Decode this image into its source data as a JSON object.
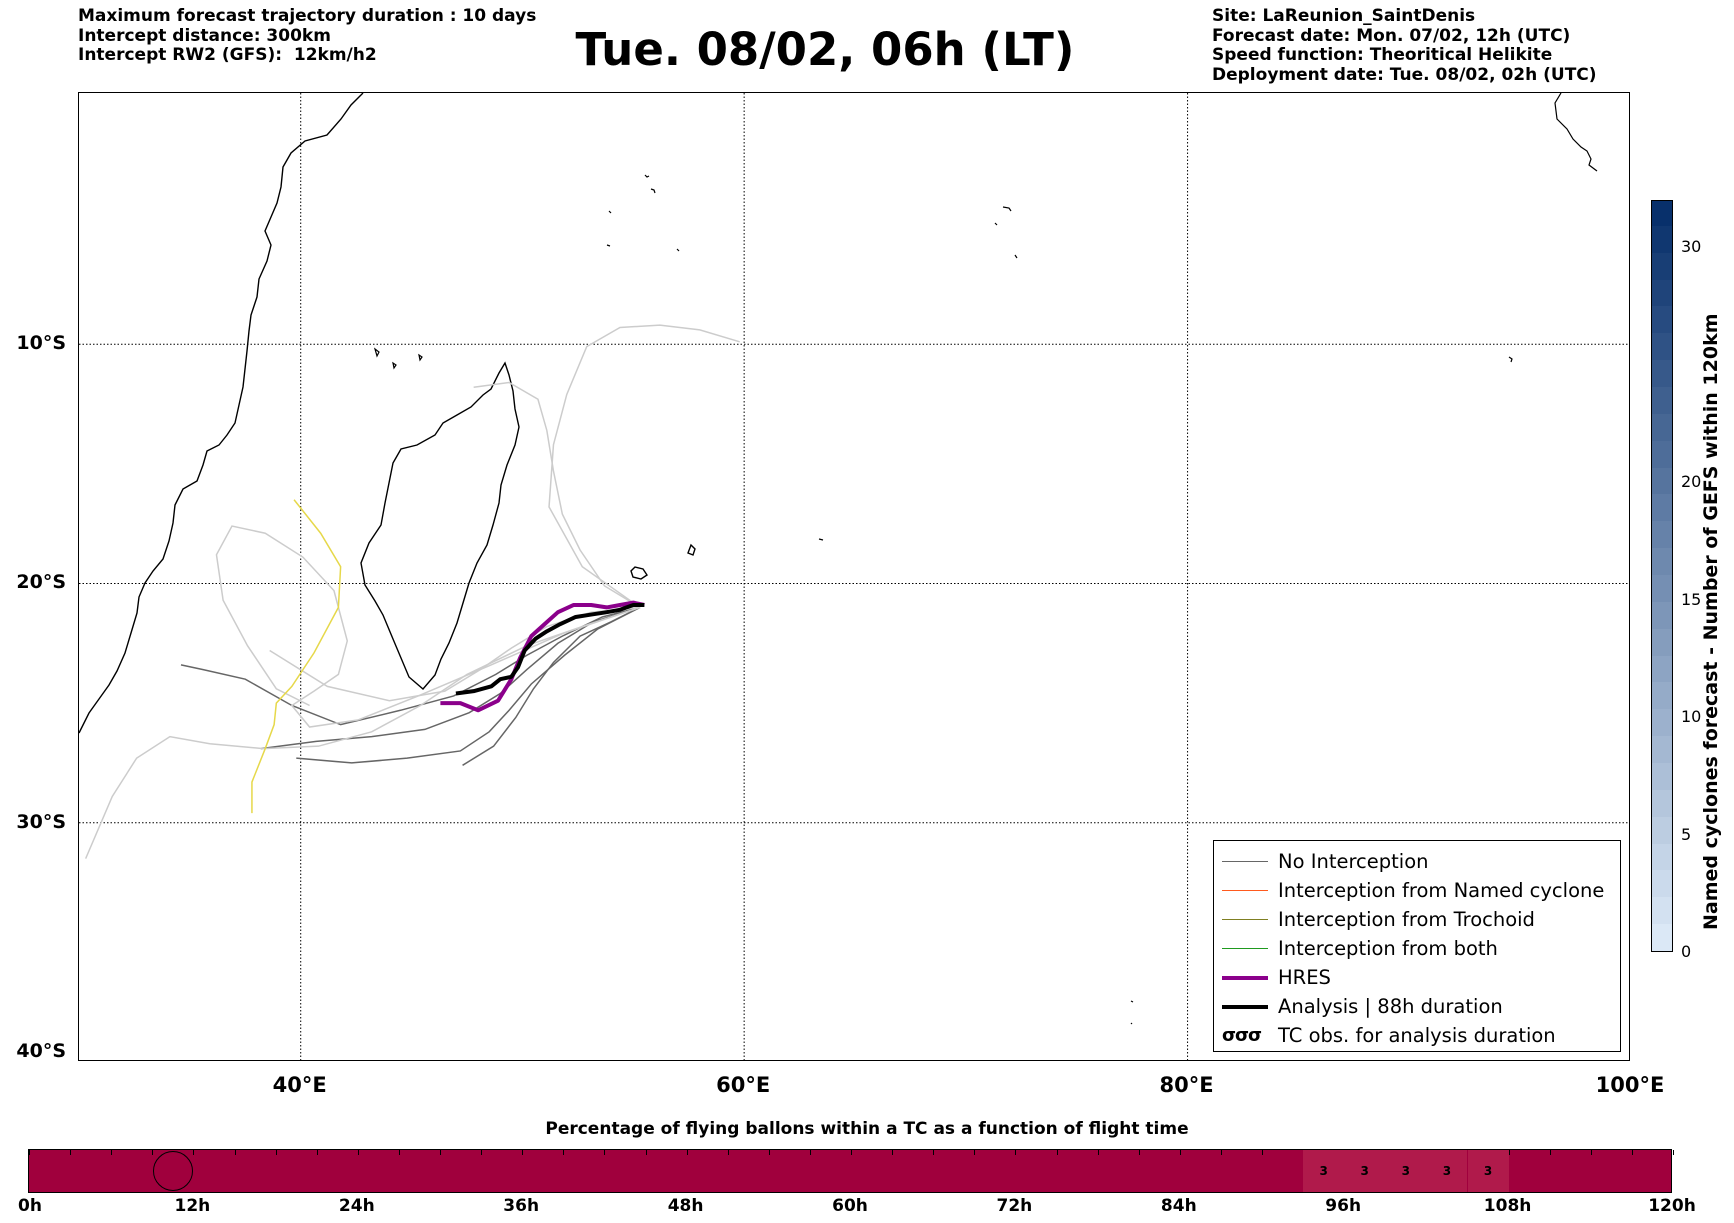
{
  "header": {
    "left_lines": [
      "Maximum forecast trajectory duration : 10 days",
      "Intercept distance: 300km",
      "Intercept RW2 (GFS):  12km/h2"
    ],
    "title": "Tue. 08/02, 06h (LT)",
    "right_lines": [
      "Site: LaReunion_SaintDenis",
      "Forecast date: Mon. 07/02, 12h (UTC)",
      "Speed function: Theoritical Helikite",
      "Deployment date: Tue. 08/02, 02h (UTC)"
    ]
  },
  "map": {
    "lon_range": [
      30,
      100
    ],
    "lat_range": [
      -40,
      0.5
    ],
    "lat_ticks": [
      {
        "value": -10,
        "label": "10°S"
      },
      {
        "value": -20,
        "label": "20°S"
      },
      {
        "value": -30,
        "label": "30°S"
      },
      {
        "value": -40,
        "label": "40°S"
      }
    ],
    "lon_ticks": [
      {
        "value": 40,
        "label": "40°E"
      },
      {
        "value": 60,
        "label": "60°E"
      },
      {
        "value": 80,
        "label": "80°E"
      },
      {
        "value": 100,
        "label": "100°E"
      }
    ],
    "grid": true,
    "colors": {
      "no_interception": "#666666",
      "no_interception_light": "#cccccc",
      "named_cyclone": "#ff5a1e",
      "trochoid": "#7f7f22",
      "both": "#1f9a1f",
      "hres": "#8b008b",
      "analysis": "#000000",
      "trochoid_track": "#e6d84a"
    }
  },
  "chart_data": {
    "type": "line",
    "title": "Tue. 08/02, 06h (LT)",
    "xlabel": "",
    "ylabel": "",
    "xlim": [
      30,
      100
    ],
    "ylim": [
      -40,
      0.5
    ],
    "series": [
      {
        "name": "HRES",
        "x": [
          46.3,
          47.2,
          48.0,
          48.9,
          49.5,
          49.9,
          50.4,
          51.0,
          51.6,
          52.3,
          53.1,
          53.8,
          54.4,
          55.0,
          55.5
        ],
        "y": [
          -25.0,
          -25.0,
          -25.3,
          -24.9,
          -24.0,
          -23.1,
          -22.2,
          -21.7,
          -21.2,
          -20.9,
          -20.9,
          -21.0,
          -20.9,
          -20.8,
          -20.9
        ]
      },
      {
        "name": "Analysis | 88h duration",
        "x": [
          47.0,
          47.8,
          48.6,
          49.0,
          49.5,
          49.8,
          50.1,
          50.6,
          51.1,
          51.7,
          52.4,
          53.1,
          53.8,
          54.4,
          55.0,
          55.5
        ],
        "y": [
          -24.6,
          -24.5,
          -24.3,
          -24.0,
          -23.9,
          -23.5,
          -22.8,
          -22.3,
          -22.0,
          -21.7,
          -21.4,
          -21.3,
          -21.2,
          -21.1,
          -20.9,
          -20.9
        ]
      },
      {
        "name": "",
        "x": [
          55.3,
          53.6,
          51.8,
          50.2,
          48.8,
          46.9,
          44.5,
          41.8,
          39.6,
          37.5,
          35.6,
          34.6
        ],
        "y": [
          -21.0,
          -21.4,
          -22.2,
          -23.0,
          -23.8,
          -24.7,
          -25.3,
          -25.9,
          -25.1,
          -24.0,
          -23.6,
          -23.4
        ]
      },
      {
        "name": "",
        "x": [
          55.3,
          53.2,
          51.6,
          50.2,
          49.0,
          47.6,
          45.6,
          43.2,
          40.7,
          38.2
        ],
        "y": [
          -21.0,
          -21.6,
          -22.5,
          -23.6,
          -24.6,
          -25.4,
          -26.1,
          -26.4,
          -26.6,
          -26.9
        ]
      },
      {
        "name": "",
        "x": [
          55.3,
          53.4,
          51.9,
          50.4,
          49.4,
          48.5,
          47.2,
          44.8,
          42.3,
          39.8
        ],
        "y": [
          -21.0,
          -21.9,
          -23.0,
          -24.2,
          -25.3,
          -26.2,
          -27.0,
          -27.3,
          -27.5,
          -27.3
        ]
      },
      {
        "name": "",
        "x": [
          55.3,
          54.0,
          52.6,
          51.4,
          50.5,
          49.7,
          48.7,
          47.3
        ],
        "y": [
          -21.0,
          -21.6,
          -22.2,
          -23.3,
          -24.4,
          -25.6,
          -26.8,
          -27.6
        ]
      },
      {
        "name": "",
        "x": [
          55.3,
          53.1,
          51.1,
          49.5,
          48.1,
          46.5,
          44.0,
          41.2,
          38.6
        ],
        "y": [
          -21.0,
          -21.2,
          -21.8,
          -22.7,
          -23.6,
          -24.5,
          -24.9,
          -24.3,
          -22.8
        ]
      },
      {
        "name": "",
        "x": [
          55.3,
          53.7,
          52.6,
          51.8,
          51.4,
          51.1,
          50.7,
          49.4,
          47.8
        ],
        "y": [
          -21.0,
          -20.1,
          -18.6,
          -17.1,
          -15.3,
          -13.6,
          -12.3,
          -11.6,
          -11.8
        ]
      },
      {
        "name": "",
        "x": [
          55.3,
          52.7,
          51.2,
          51.4,
          52.0,
          52.9,
          54.4,
          56.2,
          58.0,
          59.8
        ],
        "y": [
          -21.0,
          -19.3,
          -16.8,
          -14.2,
          -12.1,
          -10.1,
          -9.3,
          -9.2,
          -9.4,
          -9.9
        ]
      },
      {
        "name": "",
        "x": [
          55.3,
          53.0,
          50.2,
          47.5,
          45.4,
          43.2,
          40.8,
          38.3,
          35.9,
          34.1,
          32.6,
          31.5,
          30.3
        ],
        "y": [
          -21.0,
          -21.7,
          -22.6,
          -23.8,
          -25.1,
          -26.2,
          -26.8,
          -26.9,
          -26.7,
          -26.4,
          -27.3,
          -28.9,
          -31.5
        ]
      },
      {
        "name": "",
        "x": [
          55.3,
          51.8,
          48.6,
          45.3,
          42.6,
          40.4,
          39.6,
          40.6,
          41.7,
          42.1,
          41.5,
          40.1,
          38.4,
          36.9,
          36.2,
          36.5,
          37.6,
          38.9,
          40.4
        ],
        "y": [
          -21.0,
          -22.1,
          -23.4,
          -24.7,
          -25.7,
          -26.0,
          -25.1,
          -24.5,
          -23.8,
          -22.4,
          -20.3,
          -18.9,
          -17.9,
          -17.6,
          -18.8,
          -20.7,
          -22.6,
          -24.4,
          -25.1
        ]
      },
      {
        "name": "",
        "x": [
          39.7,
          40.9,
          41.8,
          41.7,
          40.6,
          39.6,
          38.9,
          38.8,
          38.4,
          37.8,
          37.8
        ],
        "y": [
          -16.5,
          -17.9,
          -19.3,
          -21.0,
          -22.9,
          -24.3,
          -25.0,
          -25.9,
          -26.9,
          -28.3,
          -29.6
        ]
      }
    ]
  },
  "legend": {
    "items": [
      {
        "label": "No Interception",
        "color": "#666666",
        "width": 1.5
      },
      {
        "label": "Interception from Named cyclone",
        "color": "#ff5a1e",
        "width": 1.5
      },
      {
        "label": "Interception from Trochoid",
        "color": "#7f7f22",
        "width": 1.5
      },
      {
        "label": "Interception from both",
        "color": "#1f9a1f",
        "width": 1.5
      },
      {
        "label": "HRES",
        "color": "#8b008b",
        "width": 4
      },
      {
        "label": "Analysis | 88h duration",
        "color": "#000000",
        "width": 4
      }
    ],
    "tc_glyph": "σσσ",
    "tc_label": "TC obs. for analysis duration"
  },
  "colorbar": {
    "label": "Named cyclones forecast - Number of GEFS within 120km",
    "min": 0,
    "max": 32,
    "ticks": [
      0,
      5,
      10,
      15,
      20,
      30
    ],
    "color_low": "#dbe8f6",
    "color_high": "#08306b"
  },
  "timebar": {
    "title": "Percentage of flying ballons within a TC as a function of flight time",
    "hours_max": 120,
    "ticks": [
      "0h",
      "12h",
      "24h",
      "36h",
      "48h",
      "60h",
      "72h",
      "84h",
      "96h",
      "108h",
      "120h"
    ],
    "base_color": "#a0003d",
    "highlight_color": "#b01a4b",
    "cells": [
      {
        "hour": 94.5,
        "value": "3"
      },
      {
        "hour": 97.5,
        "value": "3"
      },
      {
        "hour": 100.5,
        "value": "3"
      },
      {
        "hour": 103.5,
        "value": "3"
      },
      {
        "hour": 106.5,
        "value": "3"
      }
    ],
    "circle_hour": 10.5
  }
}
